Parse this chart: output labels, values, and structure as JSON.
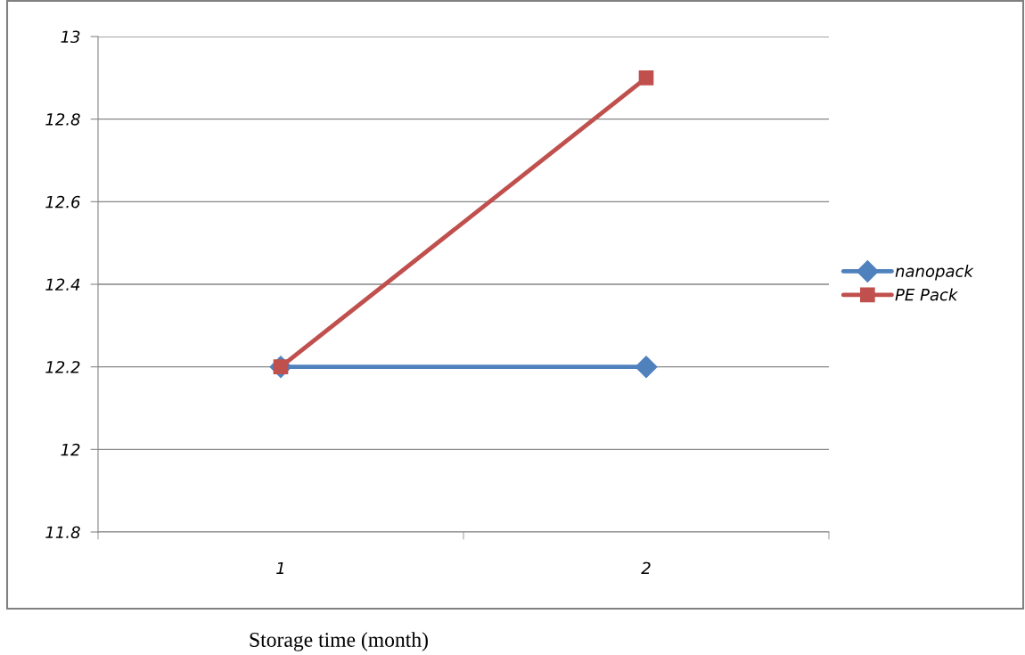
{
  "chart_data": {
    "type": "line",
    "xlabel": "Storage time (month)",
    "categories": [
      "1",
      "2"
    ],
    "series": [
      {
        "name": "nanopack",
        "color": "#4f81bd",
        "values": [
          12.2,
          12.2
        ],
        "marker": "diamond"
      },
      {
        "name": "PE Pack",
        "color": "#c0504d",
        "values": [
          12.2,
          12.9
        ],
        "marker": "square"
      }
    ],
    "ylim": [
      11.8,
      13
    ],
    "yticks": [
      11.8,
      12,
      12.2,
      12.4,
      12.6,
      12.8,
      13
    ],
    "grid": "y",
    "legend": "right",
    "line_style": "solid"
  }
}
